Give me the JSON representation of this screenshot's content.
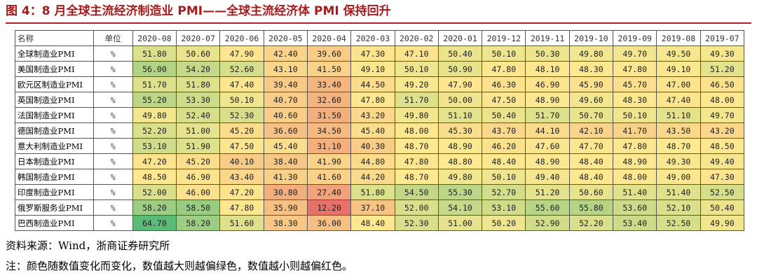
{
  "title": "图 4：8 月全球主流经济制造业 PMI——全球主流经济体 PMI 保持回升",
  "columns": {
    "name": "名称",
    "unit": "单位",
    "periods": [
      "2020-08",
      "2020-07",
      "2020-06",
      "2020-05",
      "2020-04",
      "2020-03",
      "2020-02",
      "2020-01",
      "2019-12",
      "2019-11",
      "2019-10",
      "2019-09",
      "2019-08",
      "2019-07"
    ]
  },
  "rows": [
    {
      "name": "全球制造业PMI",
      "unit": "%",
      "values": [
        "51.80",
        "50.60",
        "47.90",
        "42.40",
        "39.60",
        "47.30",
        "47.10",
        "50.40",
        "50.10",
        "50.30",
        "49.80",
        "49.70",
        "49.50",
        "49.30"
      ]
    },
    {
      "name": "美国制造业PMI",
      "unit": "%",
      "values": [
        "56.00",
        "54.20",
        "52.60",
        "43.10",
        "41.50",
        "49.10",
        "50.10",
        "50.90",
        "47.80",
        "48.10",
        "48.30",
        "47.80",
        "49.10",
        "51.20"
      ]
    },
    {
      "name": "欧元区制造业PMI",
      "unit": "%",
      "values": [
        "51.70",
        "51.80",
        "47.40",
        "39.40",
        "33.40",
        "44.50",
        "49.20",
        "47.90",
        "46.30",
        "46.90",
        "45.90",
        "45.70",
        "47.00",
        "46.50"
      ]
    },
    {
      "name": "英国制造业PMI",
      "unit": "%",
      "values": [
        "55.20",
        "53.30",
        "50.10",
        "40.70",
        "32.60",
        "47.80",
        "51.70",
        "50.00",
        "47.50",
        "48.90",
        "49.60",
        "48.30",
        "47.40",
        "48.00"
      ]
    },
    {
      "name": "法国制造业PMI",
      "unit": "%",
      "values": [
        "49.80",
        "52.40",
        "52.30",
        "40.60",
        "31.50",
        "43.20",
        "49.80",
        "51.10",
        "50.40",
        "51.70",
        "50.70",
        "50.10",
        "51.10",
        "49.70"
      ]
    },
    {
      "name": "德国制造业PMI",
      "unit": "%",
      "values": [
        "52.20",
        "51.00",
        "45.20",
        "36.60",
        "34.50",
        "45.40",
        "48.00",
        "45.30",
        "43.70",
        "44.10",
        "42.10",
        "41.70",
        "43.50",
        "43.20"
      ]
    },
    {
      "name": "意大利制造业PMI",
      "unit": "%",
      "values": [
        "53.10",
        "51.90",
        "47.50",
        "45.40",
        "31.10",
        "40.30",
        "48.70",
        "48.90",
        "46.20",
        "47.60",
        "47.70",
        "47.80",
        "48.70",
        "48.50"
      ]
    },
    {
      "name": "日本制造业PMI",
      "unit": "%",
      "values": [
        "47.20",
        "45.20",
        "40.10",
        "38.40",
        "41.90",
        "44.80",
        "47.80",
        "48.80",
        "48.40",
        "48.90",
        "48.40",
        "48.90",
        "49.30",
        "49.40"
      ]
    },
    {
      "name": "韩国制造业PMI",
      "unit": "%",
      "values": [
        "48.50",
        "46.90",
        "43.40",
        "41.30",
        "41.60",
        "44.20",
        "48.70",
        "49.80",
        "50.10",
        "49.40",
        "48.40",
        "48.00",
        "49.00",
        "47.30"
      ]
    },
    {
      "name": "印度制造业PMI",
      "unit": "%",
      "values": [
        "52.00",
        "46.00",
        "47.20",
        "30.80",
        "27.40",
        "51.80",
        "54.50",
        "55.30",
        "52.70",
        "51.20",
        "50.60",
        "51.40",
        "51.40",
        "52.50"
      ]
    },
    {
      "name": "俄罗斯服务业PMI",
      "unit": "%",
      "values": [
        "58.20",
        "58.50",
        "47.80",
        "35.90",
        "12.20",
        "37.10",
        "52.00",
        "54.10",
        "53.10",
        "55.60",
        "55.80",
        "53.60",
        "52.10",
        "50.40"
      ]
    },
    {
      "name": "巴西制造业PMI",
      "unit": "%",
      "values": [
        "64.70",
        "58.20",
        "51.60",
        "38.30",
        "36.00",
        "48.40",
        "52.30",
        "51.00",
        "50.20",
        "52.90",
        "52.20",
        "53.40",
        "52.50",
        "49.90"
      ]
    }
  ],
  "color_scale": {
    "low": "#e8706b",
    "mid": "#fde990",
    "high": "#5aba78"
  },
  "notes": {
    "source": "资料来源：Wind，浙商证券研究所",
    "remark": "注：颜色随数值变化而变化，数值越大则越偏绿色，数值越小则越偏红色。"
  }
}
